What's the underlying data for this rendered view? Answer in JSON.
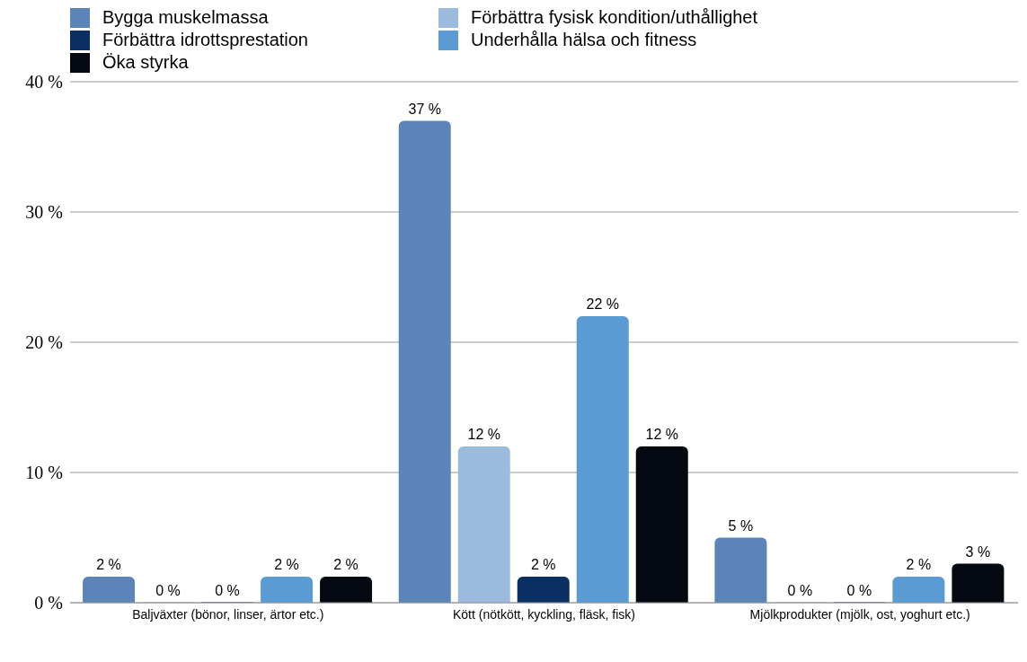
{
  "chart_data": {
    "type": "bar",
    "categories": [
      "Baljväxter (bönor, linser, ärtor etc.)",
      "Kött (nötkött, kyckling, fläsk, fisk)",
      "Mjölkprodukter (mjölk, ost, yoghurt etc.)"
    ],
    "series": [
      {
        "name": "Bygga muskelmassa",
        "color": "#5b84b8",
        "values": [
          2,
          37,
          5
        ],
        "value_labels": [
          "2 %",
          "37 %",
          "5 %"
        ]
      },
      {
        "name": "Förbättra fysisk kondition/uthållighet",
        "color": "#9bbbdc",
        "values": [
          0,
          12,
          0
        ],
        "value_labels": [
          "0 %",
          "12 %",
          "0 %"
        ]
      },
      {
        "name": "Förbättra idrottsprestation",
        "color": "#0c2f63",
        "values": [
          0,
          2,
          0
        ],
        "value_labels": [
          "0 %",
          "2 %",
          "0 %"
        ]
      },
      {
        "name": "Underhålla hälsa och fitness",
        "color": "#5b9bd3",
        "values": [
          2,
          22,
          2
        ],
        "value_labels": [
          "2 %",
          "22 %",
          "2 %"
        ]
      },
      {
        "name": "Öka styrka",
        "color": "#050a12",
        "values": [
          2,
          12,
          3
        ],
        "value_labels": [
          "2 %",
          "12 %",
          "3 %"
        ]
      }
    ],
    "ylim": [
      0,
      40
    ],
    "yticks": [
      {
        "value": 0,
        "label": "0 %"
      },
      {
        "value": 10,
        "label": "10 %"
      },
      {
        "value": 20,
        "label": "20 %"
      },
      {
        "value": 30,
        "label": "30 %"
      },
      {
        "value": 40,
        "label": "40 %"
      }
    ],
    "grid": "y",
    "legend": "top left"
  }
}
